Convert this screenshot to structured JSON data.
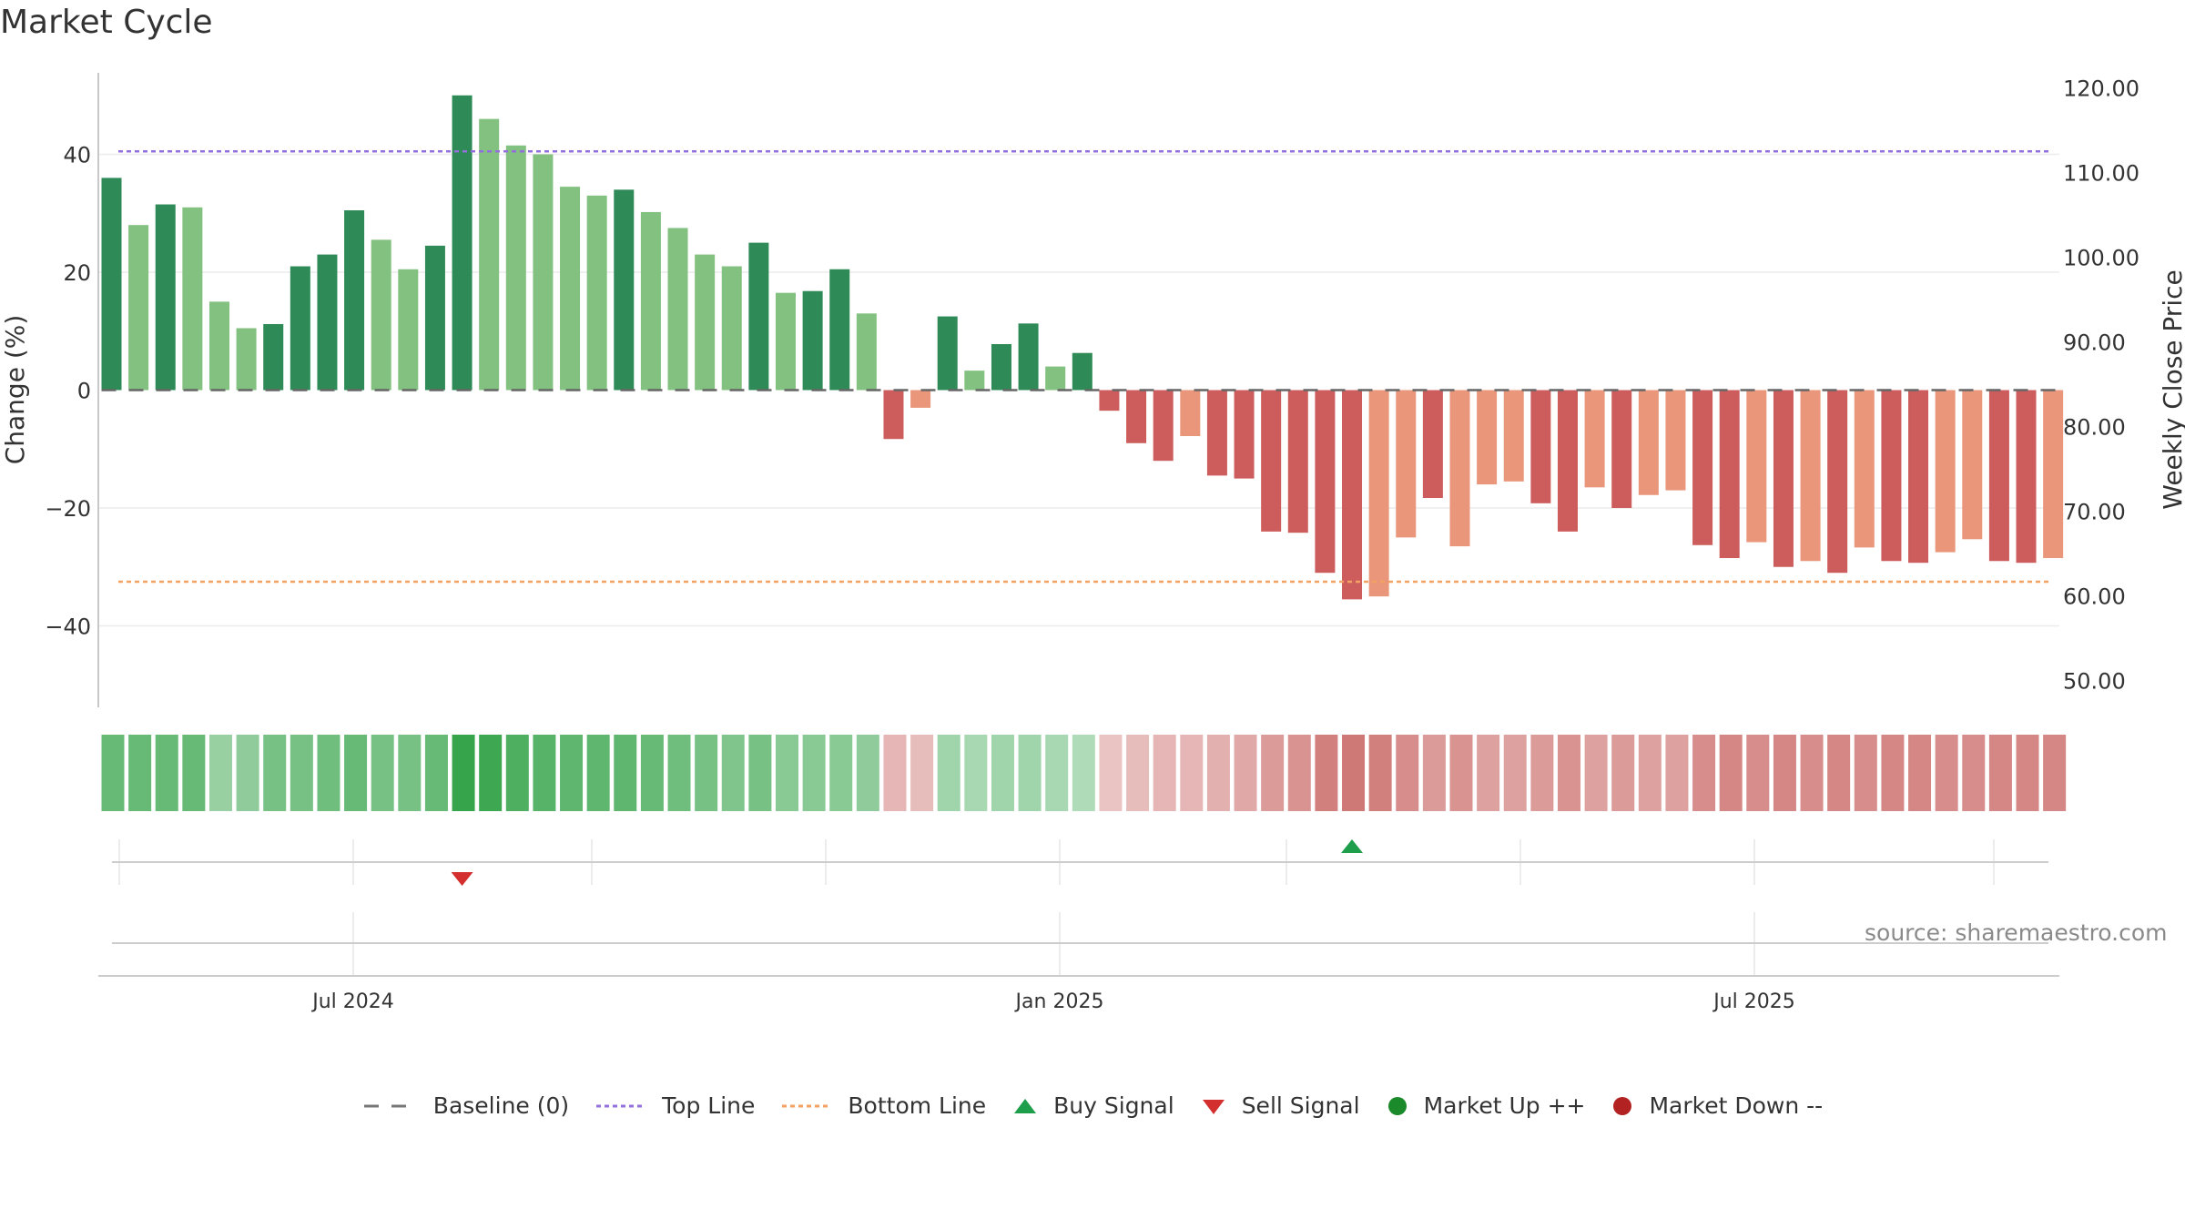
{
  "title": "Market Cycle",
  "source": "source: sharemaestro.com",
  "chart_data": {
    "type": "bar",
    "title": "Market Cycle",
    "ylabel": "Change (%)",
    "y2label": "Weekly Close Price",
    "ylim": [
      -54,
      54
    ],
    "y2lim": [
      46.8,
      121.8
    ],
    "yticks": [
      40,
      20,
      0,
      -20,
      -40
    ],
    "ytick_labels": [
      "40",
      "20",
      "0",
      "−20",
      "−40"
    ],
    "y2ticks": [
      120,
      110,
      100,
      90,
      80,
      70,
      60,
      50
    ],
    "y2tick_labels": [
      "120.00",
      "110.00",
      "100.00",
      "90.00",
      "80.00",
      "70.00",
      "60.00",
      "50.00"
    ],
    "xticks": [
      "Jul 2024",
      "Jan 2025",
      "Jul 2025"
    ],
    "top_line": 40.5,
    "bottom_line": -32.5,
    "baseline": 0,
    "grid": true,
    "colors": {
      "strong_up": "#2e8b57",
      "up": "#82c17f",
      "strong_down": "#cd5c5c",
      "down": "#e9967a",
      "top_line": "#9370db",
      "bottom_line": "#f4a261",
      "buy": "#1e9e4a",
      "sell": "#d32f2f",
      "market_up": "#1b8a2a",
      "market_down": "#b22222"
    },
    "values": [
      36,
      28,
      31.5,
      31,
      15,
      10.5,
      11.2,
      21,
      23,
      30.5,
      25.5,
      20.5,
      24.5,
      50,
      46,
      41.5,
      40,
      34.5,
      33,
      34,
      30.2,
      27.5,
      23,
      21,
      25,
      16.5,
      16.8,
      20.5,
      13,
      -8.3,
      -3,
      12.5,
      3.3,
      7.8,
      11.3,
      4,
      6.3,
      -3.5,
      -9,
      -12,
      -7.8,
      -14.5,
      -15,
      -24,
      -24.2,
      -31,
      -35.5,
      -35,
      -25,
      -18.3,
      -26.5,
      -16,
      -15.5,
      -19.2,
      -24,
      -16.5,
      -20,
      -17.8,
      -17,
      -26.3,
      -28.5,
      -25.8,
      -30,
      -29,
      -31,
      -26.7,
      -29,
      -29.3,
      -27.5,
      -25.3,
      -29,
      -29.3,
      -28.5
    ],
    "strength": [
      "strong",
      "normal",
      "strong",
      "normal",
      "normal",
      "normal",
      "strong",
      "strong",
      "strong",
      "strong",
      "normal",
      "normal",
      "strong",
      "strong",
      "normal",
      "normal",
      "normal",
      "normal",
      "normal",
      "strong",
      "normal",
      "normal",
      "normal",
      "normal",
      "strong",
      "normal",
      "strong",
      "strong",
      "normal",
      "strong",
      "normal",
      "strong",
      "normal",
      "strong",
      "strong",
      "normal",
      "strong",
      "strong",
      "strong",
      "strong",
      "normal",
      "strong",
      "strong",
      "strong",
      "strong",
      "strong",
      "strong",
      "normal",
      "normal",
      "strong",
      "normal",
      "normal",
      "normal",
      "strong",
      "strong",
      "normal",
      "strong",
      "normal",
      "normal",
      "strong",
      "strong",
      "normal",
      "strong",
      "normal",
      "strong",
      "normal",
      "strong",
      "strong",
      "normal",
      "normal",
      "strong",
      "strong",
      "normal"
    ],
    "heat_levels": [
      0.65,
      0.65,
      0.65,
      0.65,
      0.35,
      0.4,
      0.55,
      0.55,
      0.6,
      0.65,
      0.55,
      0.55,
      0.65,
      0.95,
      0.9,
      0.8,
      0.75,
      0.7,
      0.7,
      0.7,
      0.65,
      0.6,
      0.55,
      0.5,
      0.55,
      0.45,
      0.45,
      0.45,
      0.4,
      -0.25,
      -0.2,
      0.3,
      0.25,
      0.3,
      0.3,
      0.25,
      0.2,
      -0.15,
      -0.2,
      -0.25,
      -0.25,
      -0.3,
      -0.35,
      -0.45,
      -0.5,
      -0.65,
      -0.7,
      -0.65,
      -0.55,
      -0.45,
      -0.5,
      -0.4,
      -0.4,
      -0.45,
      -0.5,
      -0.4,
      -0.45,
      -0.4,
      -0.4,
      -0.55,
      -0.6,
      -0.55,
      -0.6,
      -0.55,
      -0.6,
      -0.55,
      -0.6,
      -0.6,
      -0.55,
      -0.55,
      -0.6,
      -0.6,
      -0.6
    ],
    "signals": [
      {
        "type": "buy",
        "index": 46
      },
      {
        "type": "sell",
        "index": 13
      }
    ]
  },
  "legend": {
    "baseline": "Baseline (0)",
    "top_line": "Top Line",
    "bottom_line": "Bottom Line",
    "buy": "Buy Signal",
    "sell": "Sell Signal",
    "market_up": "Market Up ++",
    "market_down": "Market Down --"
  }
}
